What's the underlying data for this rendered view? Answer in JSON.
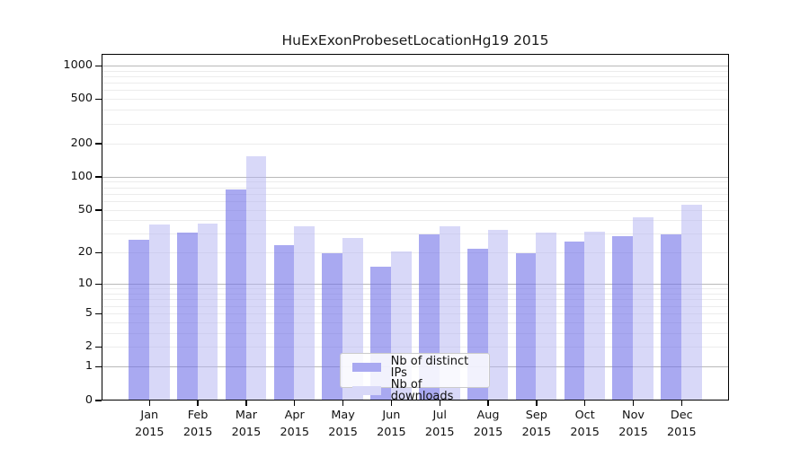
{
  "chart_data": {
    "type": "bar",
    "title": "HuExExonProbesetLocationHg19 2015",
    "year_label": "2015",
    "categories": [
      "Jan",
      "Feb",
      "Mar",
      "Apr",
      "May",
      "Jun",
      "Jul",
      "Aug",
      "Sep",
      "Oct",
      "Nov",
      "Dec"
    ],
    "series": [
      {
        "name": "Nb of distinct IPs",
        "color": "#a9a9f1",
        "values": [
          27,
          31,
          77,
          24,
          20,
          15,
          30,
          22,
          20,
          26,
          29,
          30
        ]
      },
      {
        "name": "Nb of downloads",
        "color": "#d8d8f8",
        "values": [
          37,
          38,
          156,
          36,
          28,
          21,
          36,
          33,
          31,
          32,
          43,
          56
        ]
      }
    ],
    "yscale": "log1p",
    "ylim": [
      0,
      1000
    ],
    "y_ticks": [
      0,
      1,
      2,
      5,
      10,
      20,
      50,
      100,
      200,
      500,
      1000
    ],
    "grid": "horizontal",
    "grid_major_at": [
      1,
      10,
      100,
      1000
    ],
    "legend_position": "inside-bottom-center",
    "colors": {
      "axis": "#000000",
      "grid_major": "#b9b9b9",
      "grid_minor": "#ececec",
      "background": "#ffffff"
    }
  }
}
